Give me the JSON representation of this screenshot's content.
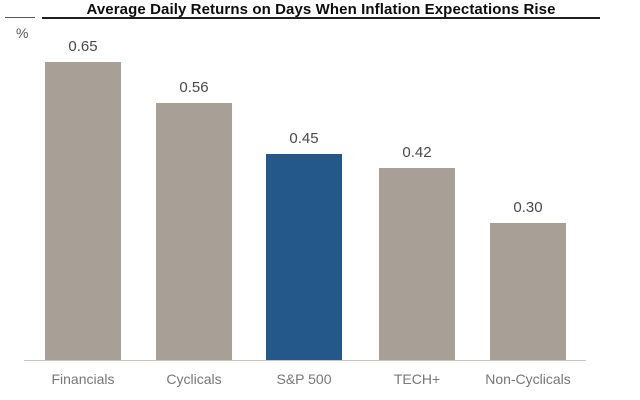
{
  "chart_data": {
    "type": "bar",
    "title": "Average Daily Returns on Days When Inflation Expectations Rise",
    "ylabel": "%",
    "xlabel": "",
    "categories": [
      "Financials",
      "Cyclicals",
      "S&P 500",
      "TECH+",
      "Non-Cyclicals"
    ],
    "values": [
      0.65,
      0.56,
      0.45,
      0.42,
      0.3
    ],
    "value_labels": [
      "0.65",
      "0.56",
      "0.45",
      "0.42",
      "0.30"
    ],
    "highlighted_category": "S&P 500",
    "highlight_index": 2,
    "ylim": [
      0,
      0.7
    ],
    "grid": false,
    "legend": false,
    "colors": {
      "bar": "#a8a097",
      "highlight_bar": "#24588b",
      "axis_line": "#c9c5c1",
      "title_text": "#0d0d0d",
      "value_label": "#4a4a4a",
      "category_label": "#777777"
    }
  }
}
